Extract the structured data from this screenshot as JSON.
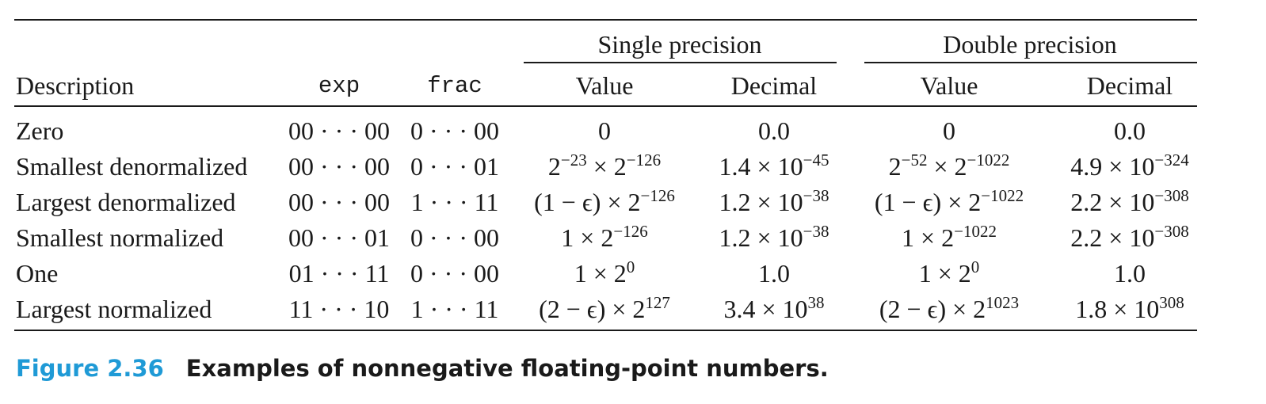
{
  "headers": {
    "group_single": "Single precision",
    "group_double": "Double precision",
    "description": "Description",
    "exp": "exp",
    "frac": "frac",
    "sp_value": "Value",
    "sp_decimal": "Decimal",
    "dp_value": "Value",
    "dp_decimal": "Decimal"
  },
  "rows": [
    {
      "description": "Zero",
      "exp": "00 · · · 00",
      "frac": "0 · · · 00",
      "sp_value": {
        "base": "0",
        "exp": ""
      },
      "sp_decimal": {
        "base": "0.0",
        "exp": ""
      },
      "dp_value": {
        "base": "0",
        "exp": ""
      },
      "dp_decimal": {
        "base": "0.0",
        "exp": ""
      }
    },
    {
      "description": "Smallest denormalized",
      "exp": "00 · · · 00",
      "frac": "0 · · · 01",
      "sp_value": {
        "base1": "2",
        "exp1": "−23",
        "mid": " × 2",
        "exp2": "−126"
      },
      "sp_decimal": {
        "base": "1.4 × 10",
        "exp": "−45"
      },
      "dp_value": {
        "base1": "2",
        "exp1": "−52",
        "mid": " × 2",
        "exp2": "−1022"
      },
      "dp_decimal": {
        "base": "4.9 × 10",
        "exp": "−324"
      }
    },
    {
      "description": "Largest denormalized",
      "exp": "00 · · · 00",
      "frac": "1 · · · 11",
      "sp_value": {
        "base": "(1 − ϵ) × 2",
        "exp": "−126"
      },
      "sp_decimal": {
        "base": "1.2 × 10",
        "exp": "−38"
      },
      "dp_value": {
        "base": "(1 − ϵ) × 2",
        "exp": "−1022"
      },
      "dp_decimal": {
        "base": "2.2 × 10",
        "exp": "−308"
      }
    },
    {
      "description": "Smallest normalized",
      "exp": "00 · · · 01",
      "frac": "0 · · · 00",
      "sp_value": {
        "base": "1 × 2",
        "exp": "−126"
      },
      "sp_decimal": {
        "base": "1.2 × 10",
        "exp": "−38"
      },
      "dp_value": {
        "base": "1 × 2",
        "exp": "−1022"
      },
      "dp_decimal": {
        "base": "2.2 × 10",
        "exp": "−308"
      }
    },
    {
      "description": "One",
      "exp": "01 · · · 11",
      "frac": "0 · · · 00",
      "sp_value": {
        "base": "1 × 2",
        "exp": "0"
      },
      "sp_decimal": {
        "base": "1.0",
        "exp": ""
      },
      "dp_value": {
        "base": "1 × 2",
        "exp": "0"
      },
      "dp_decimal": {
        "base": "1.0",
        "exp": ""
      }
    },
    {
      "description": "Largest normalized",
      "exp": "11 · · · 10",
      "frac": "1 · · · 11",
      "sp_value": {
        "base": "(2 − ϵ) × 2",
        "exp": "127"
      },
      "sp_decimal": {
        "base": "3.4 × 10",
        "exp": "38"
      },
      "dp_value": {
        "base": "(2 − ϵ) × 2",
        "exp": "1023"
      },
      "dp_decimal": {
        "base": "1.8 × 10",
        "exp": "308"
      }
    }
  ],
  "caption": {
    "figure_number": "Figure 2.36",
    "text": "Examples of nonnegative floating-point numbers."
  }
}
